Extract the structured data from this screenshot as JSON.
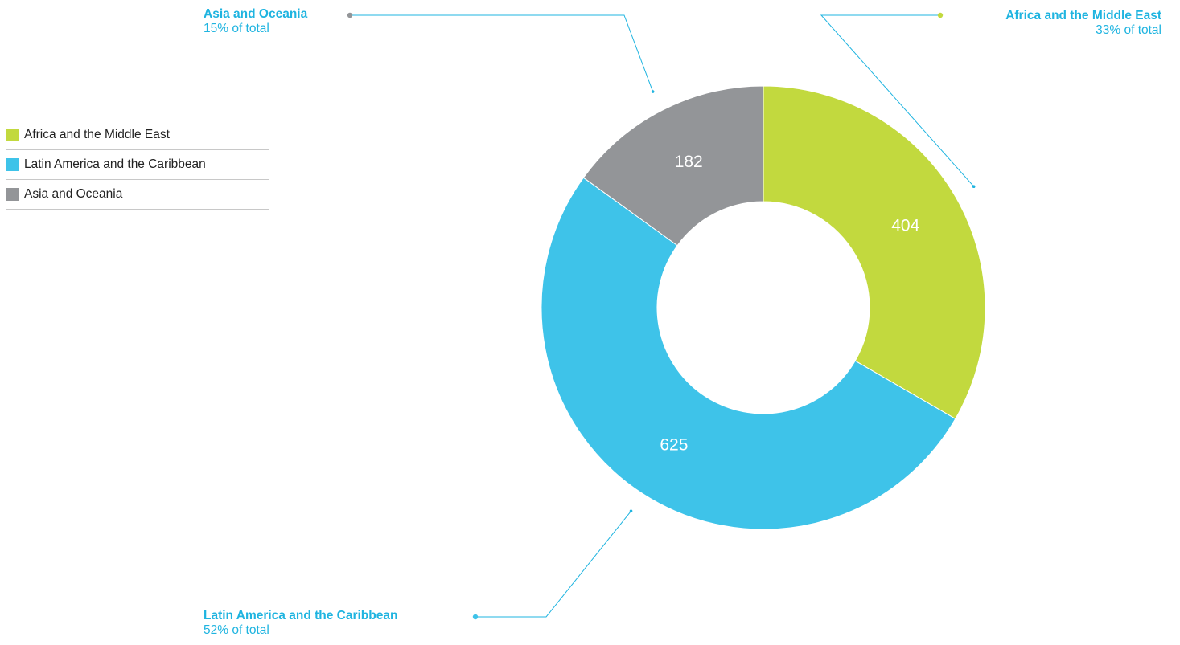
{
  "colors": {
    "africa": "#c2d93e",
    "latam": "#3ec3e9",
    "asia": "#939598",
    "callout_text": "#1fb4e0",
    "slice_label": "#ffffff"
  },
  "legend": {
    "items": [
      {
        "label": "Africa and the Middle East",
        "color": "#c2d93e"
      },
      {
        "label": "Latin America and the Caribbean",
        "color": "#3ec3e9"
      },
      {
        "label": "Asia and Oceania",
        "color": "#939598"
      }
    ]
  },
  "callouts": {
    "asia": {
      "name": "Asia and Oceania",
      "pct": "15% of total"
    },
    "africa": {
      "name": "Africa and the Middle East",
      "pct": "33% of total"
    },
    "latam": {
      "name": "Latin America and the Caribbean",
      "pct": "52% of total"
    }
  },
  "chart_data": {
    "type": "pie",
    "donut": true,
    "categories": [
      "Africa and the Middle East",
      "Latin America and the Caribbean",
      "Asia and Oceania"
    ],
    "values": [
      404,
      625,
      182
    ],
    "percentages": [
      "33% of total",
      "52% of total",
      "15% of total"
    ],
    "colors": [
      "#c2d93e",
      "#3ec3e9",
      "#939598"
    ],
    "data_labels": [
      "404",
      "625",
      "182"
    ],
    "legend_position": "left"
  }
}
